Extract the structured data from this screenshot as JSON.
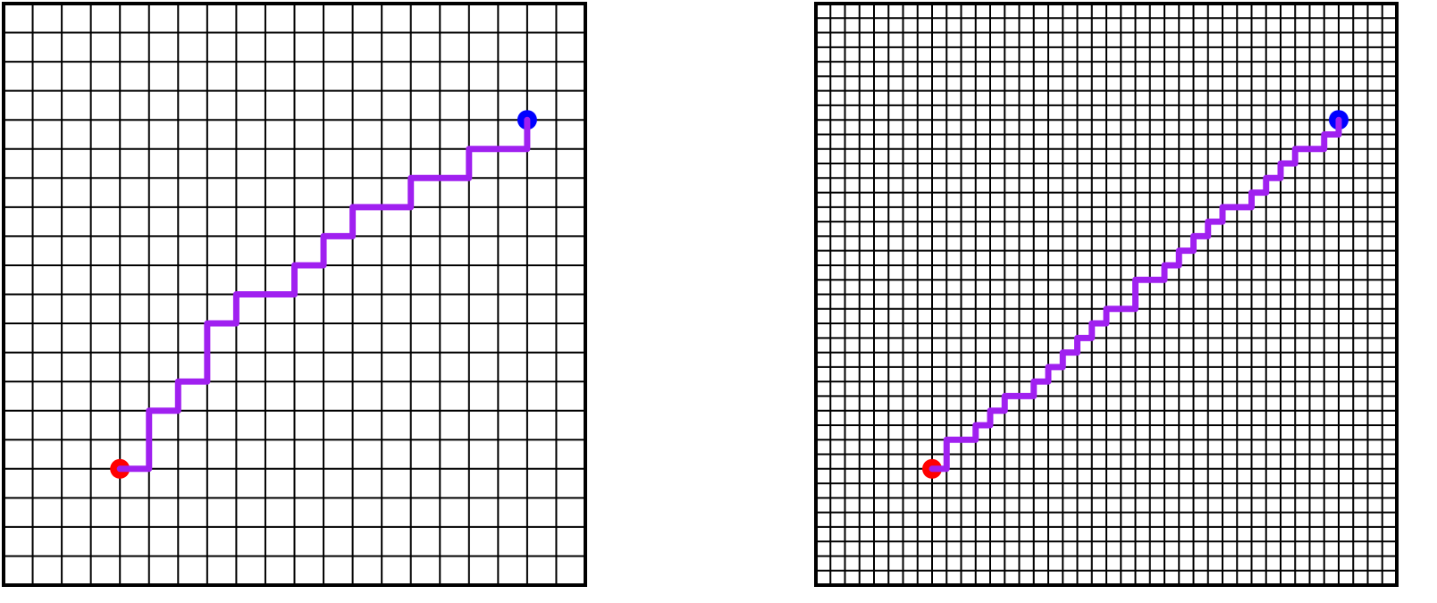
{
  "grids": [
    {
      "size": 20,
      "start": [
        4,
        16
      ],
      "goal": [
        18,
        4
      ],
      "path": [
        [
          4,
          16
        ],
        [
          5,
          16
        ],
        [
          5,
          14
        ],
        [
          6,
          14
        ],
        [
          6,
          13
        ],
        [
          7,
          13
        ],
        [
          7,
          11
        ],
        [
          8,
          11
        ],
        [
          8,
          10
        ],
        [
          10,
          10
        ],
        [
          10,
          9
        ],
        [
          11,
          9
        ],
        [
          11,
          8
        ],
        [
          12,
          8
        ],
        [
          12,
          7
        ],
        [
          14,
          7
        ],
        [
          14,
          6
        ],
        [
          16,
          6
        ],
        [
          16,
          5
        ],
        [
          18,
          5
        ],
        [
          18,
          4
        ]
      ]
    },
    {
      "size": 40,
      "start": [
        8,
        32
      ],
      "goal": [
        36,
        8
      ],
      "path": [
        [
          8,
          32
        ],
        [
          9,
          32
        ],
        [
          9,
          30
        ],
        [
          11,
          30
        ],
        [
          11,
          29
        ],
        [
          12,
          29
        ],
        [
          12,
          28
        ],
        [
          13,
          28
        ],
        [
          13,
          27
        ],
        [
          15,
          27
        ],
        [
          15,
          26
        ],
        [
          16,
          26
        ],
        [
          16,
          25
        ],
        [
          17,
          25
        ],
        [
          17,
          24
        ],
        [
          18,
          24
        ],
        [
          18,
          23
        ],
        [
          19,
          23
        ],
        [
          19,
          22
        ],
        [
          20,
          22
        ],
        [
          20,
          21
        ],
        [
          22,
          21
        ],
        [
          22,
          19
        ],
        [
          24,
          19
        ],
        [
          24,
          18
        ],
        [
          25,
          18
        ],
        [
          25,
          17
        ],
        [
          26,
          17
        ],
        [
          26,
          16
        ],
        [
          27,
          16
        ],
        [
          27,
          15
        ],
        [
          28,
          15
        ],
        [
          28,
          14
        ],
        [
          30,
          14
        ],
        [
          30,
          13
        ],
        [
          31,
          13
        ],
        [
          31,
          12
        ],
        [
          32,
          12
        ],
        [
          32,
          11
        ],
        [
          33,
          11
        ],
        [
          33,
          10
        ],
        [
          35,
          10
        ],
        [
          35,
          9
        ],
        [
          36,
          9
        ],
        [
          36,
          8
        ]
      ]
    }
  ]
}
